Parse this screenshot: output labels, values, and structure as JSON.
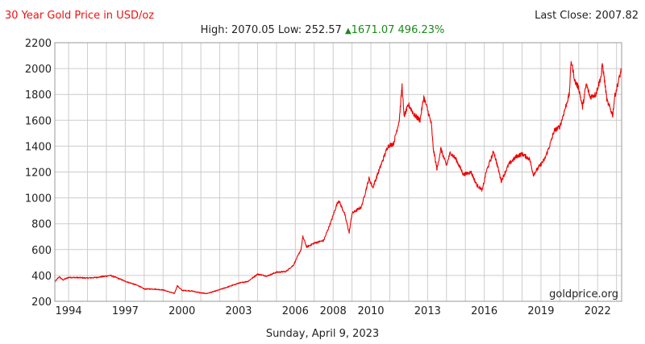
{
  "header": {
    "title": "30 Year Gold Price in USD/oz",
    "last_close_label": "Last Close: 2007.82",
    "high_low": "High: 2070.05 Low: 252.57",
    "change_arrow": "▲",
    "change_value": "1671.07 496.23%"
  },
  "footer": {
    "date": "Sunday, April 9, 2023"
  },
  "watermark": "goldprice.org",
  "colors": {
    "line": "#ee0000",
    "title": "#e11111",
    "change": "#1a8a1a",
    "grid": "#cccccc"
  },
  "chart_data": {
    "type": "line",
    "title": "30 Year Gold Price in USD/oz",
    "xlabel": "",
    "ylabel": "",
    "x_range": [
      1993.27,
      2023.27
    ],
    "ylim": [
      200,
      2200
    ],
    "yticks": [
      200,
      400,
      600,
      800,
      1000,
      1200,
      1400,
      1600,
      1800,
      2000,
      2200
    ],
    "xticks": [
      {
        "label": "1994",
        "x": 1994
      },
      {
        "label": "1997",
        "x": 1997
      },
      {
        "label": "2000",
        "x": 2000
      },
      {
        "label": "2003",
        "x": 2003
      },
      {
        "label": "2006",
        "x": 2006
      },
      {
        "label": "2008",
        "x": 2008
      },
      {
        "label": "2010",
        "x": 2010
      },
      {
        "label": "2013",
        "x": 2013
      },
      {
        "label": "2016",
        "x": 2016
      },
      {
        "label": "2019",
        "x": 2019
      },
      {
        "label": "2022",
        "x": 2022
      }
    ],
    "grid": true,
    "series": [
      {
        "values": [
          [
            1993.27,
            350
          ],
          [
            1993.5,
            390
          ],
          [
            1993.7,
            365
          ],
          [
            1994,
            385
          ],
          [
            1994.5,
            383
          ],
          [
            1995,
            380
          ],
          [
            1995.5,
            385
          ],
          [
            1996,
            395
          ],
          [
            1996.2,
            400
          ],
          [
            1996.5,
            385
          ],
          [
            1997,
            355
          ],
          [
            1997.3,
            340
          ],
          [
            1997.7,
            320
          ],
          [
            1998,
            295
          ],
          [
            1998.5,
            295
          ],
          [
            1999,
            288
          ],
          [
            1999.6,
            260
          ],
          [
            1999.75,
            320
          ],
          [
            2000,
            285
          ],
          [
            2000.5,
            280
          ],
          [
            2001,
            265
          ],
          [
            2001.3,
            260
          ],
          [
            2001.8,
            280
          ],
          [
            2002,
            290
          ],
          [
            2002.5,
            315
          ],
          [
            2003,
            340
          ],
          [
            2003.5,
            355
          ],
          [
            2004,
            410
          ],
          [
            2004.5,
            395
          ],
          [
            2005,
            425
          ],
          [
            2005.5,
            430
          ],
          [
            2005.9,
            480
          ],
          [
            2006.3,
            600
          ],
          [
            2006.4,
            700
          ],
          [
            2006.6,
            620
          ],
          [
            2007,
            650
          ],
          [
            2007.5,
            670
          ],
          [
            2007.9,
            820
          ],
          [
            2008.2,
            950
          ],
          [
            2008.3,
            980
          ],
          [
            2008.6,
            880
          ],
          [
            2008.85,
            730
          ],
          [
            2009,
            880
          ],
          [
            2009.5,
            930
          ],
          [
            2009.9,
            1150
          ],
          [
            2010.1,
            1080
          ],
          [
            2010.5,
            1240
          ],
          [
            2010.9,
            1400
          ],
          [
            2011.2,
            1420
          ],
          [
            2011.5,
            1600
          ],
          [
            2011.65,
            1870
          ],
          [
            2011.75,
            1630
          ],
          [
            2012,
            1720
          ],
          [
            2012.3,
            1640
          ],
          [
            2012.6,
            1600
          ],
          [
            2012.8,
            1780
          ],
          [
            2013,
            1680
          ],
          [
            2013.2,
            1570
          ],
          [
            2013.3,
            1380
          ],
          [
            2013.5,
            1220
          ],
          [
            2013.7,
            1380
          ],
          [
            2014,
            1250
          ],
          [
            2014.2,
            1350
          ],
          [
            2014.5,
            1300
          ],
          [
            2014.9,
            1180
          ],
          [
            2015.3,
            1200
          ],
          [
            2015.6,
            1100
          ],
          [
            2015.9,
            1060
          ],
          [
            2016.1,
            1200
          ],
          [
            2016.5,
            1360
          ],
          [
            2016.9,
            1130
          ],
          [
            2017.3,
            1260
          ],
          [
            2017.7,
            1320
          ],
          [
            2018,
            1340
          ],
          [
            2018.4,
            1300
          ],
          [
            2018.6,
            1180
          ],
          [
            2018.9,
            1240
          ],
          [
            2019.2,
            1300
          ],
          [
            2019.5,
            1420
          ],
          [
            2019.7,
            1520
          ],
          [
            2020,
            1550
          ],
          [
            2020.2,
            1650
          ],
          [
            2020.5,
            1800
          ],
          [
            2020.6,
            2065
          ],
          [
            2020.8,
            1900
          ],
          [
            2021,
            1850
          ],
          [
            2021.2,
            1700
          ],
          [
            2021.4,
            1880
          ],
          [
            2021.6,
            1780
          ],
          [
            2021.9,
            1800
          ],
          [
            2022.2,
            1950
          ],
          [
            2022.25,
            2040
          ],
          [
            2022.5,
            1750
          ],
          [
            2022.8,
            1640
          ],
          [
            2022.9,
            1780
          ],
          [
            2023.1,
            1900
          ],
          [
            2023.2,
            1960
          ],
          [
            2023.27,
            2007.82
          ]
        ]
      }
    ]
  }
}
